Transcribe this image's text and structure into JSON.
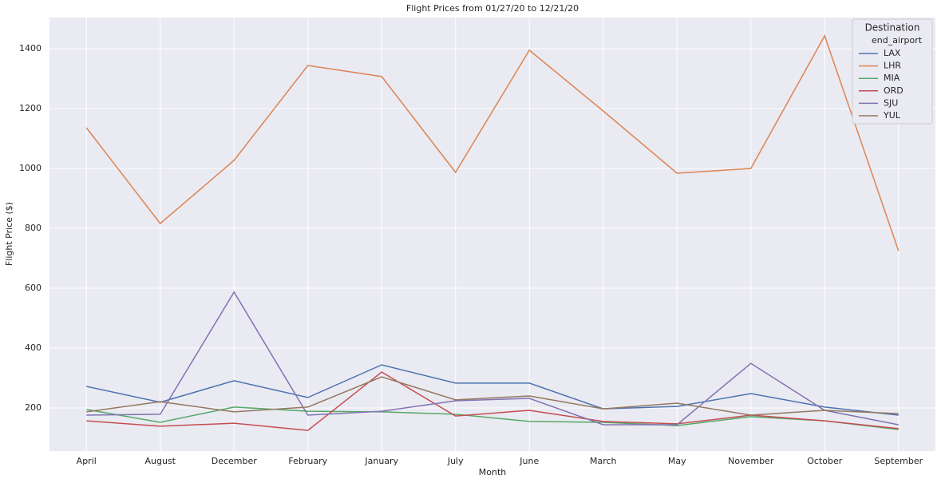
{
  "chart_data": {
    "type": "line",
    "title": "Flight Prices from 01/27/20 to 12/21/20",
    "x_label": "Month",
    "y_label": "Flight Price ($)",
    "legend_title": "Destination",
    "legend_subtitle": "end_airport",
    "legend_position": "upper right",
    "categories": [
      "April",
      "August",
      "December",
      "February",
      "January",
      "July",
      "June",
      "March",
      "May",
      "November",
      "October",
      "September"
    ],
    "series": [
      {
        "name": "LAX",
        "color": "#4c72b0",
        "values": [
          272,
          219,
          291,
          235,
          344,
          283,
          283,
          197,
          205,
          248,
          203,
          176
        ]
      },
      {
        "name": "LHR",
        "color": "#dd8452",
        "values": [
          1136,
          816,
          1027,
          1344,
          1307,
          987,
          1395,
          1192,
          984,
          1000,
          1443,
          725
        ]
      },
      {
        "name": "MIA",
        "color": "#55a868",
        "values": [
          195,
          152,
          203,
          189,
          187,
          179,
          155,
          152,
          141,
          171,
          157,
          128
        ]
      },
      {
        "name": "ORD",
        "color": "#c44e52",
        "values": [
          157,
          139,
          149,
          125,
          320,
          173,
          192,
          155,
          147,
          176,
          157,
          131
        ]
      },
      {
        "name": "SJU",
        "color": "#8172b3",
        "values": [
          176,
          179,
          587,
          176,
          189,
          224,
          232,
          144,
          144,
          349,
          192,
          144
        ]
      },
      {
        "name": "YUL",
        "color": "#937860",
        "values": [
          187,
          221,
          187,
          203,
          304,
          227,
          240,
          197,
          216,
          176,
          192,
          181
        ]
      }
    ],
    "ylim": [
      56,
      1504
    ],
    "yticks": [
      200,
      400,
      600,
      800,
      1000,
      1200,
      1400
    ],
    "grid": true
  }
}
